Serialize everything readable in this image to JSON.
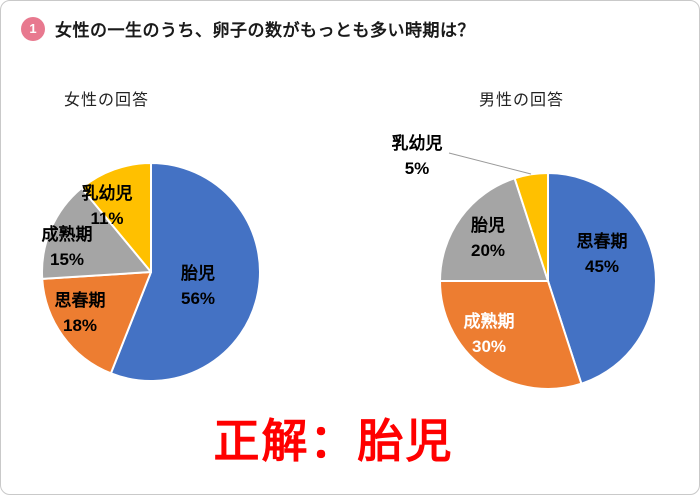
{
  "page": {
    "question_number": "1",
    "question": "女性の一生のうち、卵子の数がもっとも多い時期は？",
    "answer": "正解：胎児",
    "answer_color": "#FF0000",
    "badge_color": "#E8798F"
  },
  "chart_data": [
    {
      "type": "pie",
      "title": "女性の回答",
      "labels": [
        "胎児",
        "思春期",
        "成熟期",
        "乳幼児"
      ],
      "values": [
        56,
        18,
        15,
        11
      ],
      "unit": "%",
      "colors": [
        "#4472C4",
        "#ED7D31",
        "#A5A5A5",
        "#FFC000"
      ],
      "label_colors": [
        "#000000",
        "#000000",
        "#000000",
        "#000000"
      ],
      "start_angle_deg": -90,
      "direction": "clockwise",
      "legend": "none"
    },
    {
      "type": "pie",
      "title": "男性の回答",
      "labels": [
        "思春期",
        "成熟期",
        "胎児",
        "乳幼児"
      ],
      "values": [
        45,
        30,
        20,
        5
      ],
      "unit": "%",
      "colors": [
        "#4472C4",
        "#ED7D31",
        "#A5A5A5",
        "#FFC000"
      ],
      "label_colors": [
        "#000000",
        "#FFFFFF",
        "#000000",
        "#000000"
      ],
      "external_labels": [
        false,
        false,
        false,
        true
      ],
      "start_angle_deg": -90,
      "direction": "clockwise",
      "legend": "none"
    }
  ]
}
